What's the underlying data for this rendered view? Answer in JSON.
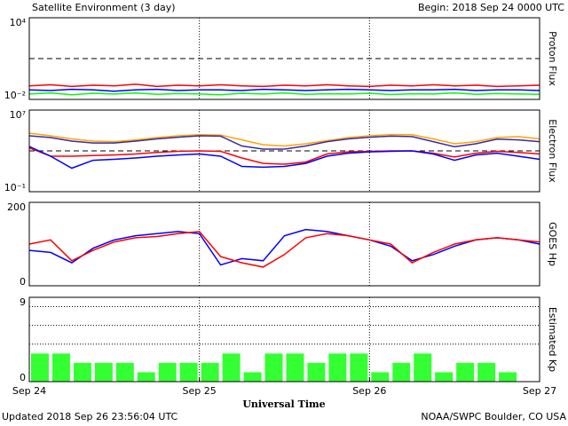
{
  "header": {
    "title": "Satellite Environment (3 day)",
    "begin": "Begin:  2018 Sep 24 0000 UTC"
  },
  "footer": {
    "updated": "Updated 2018 Sep 26 23:56:04 UTC",
    "source": "NOAA/SWPC Boulder, CO USA"
  },
  "chart_data": [
    {
      "type": "line",
      "ylabel": "Proton Flux",
      "yscale": "log",
      "ylim": [
        0.01,
        10000
      ],
      "yticks": [
        {
          "value": 10000,
          "label": "10⁴"
        },
        {
          "value": 0.01,
          "label": "10⁻²"
        }
      ],
      "xlim": [
        0,
        72
      ],
      "vlines": [
        24,
        48
      ],
      "hlines": [
        10
      ],
      "hline_style": "dashed",
      "x": [
        0,
        3,
        6,
        9,
        12,
        15,
        18,
        21,
        24,
        27,
        30,
        33,
        36,
        39,
        42,
        45,
        48,
        51,
        54,
        57,
        60,
        63,
        66,
        69,
        72
      ],
      "series": [
        {
          "color": "#ff0000",
          "values": [
            0.1,
            0.12,
            0.09,
            0.11,
            0.1,
            0.13,
            0.09,
            0.11,
            0.1,
            0.12,
            0.1,
            0.09,
            0.11,
            0.1,
            0.12,
            0.1,
            0.09,
            0.11,
            0.1,
            0.12,
            0.1,
            0.11,
            0.09,
            0.1,
            0.11
          ]
        },
        {
          "color": "#0000ff",
          "values": [
            0.05,
            0.045,
            0.055,
            0.05,
            0.04,
            0.05,
            0.055,
            0.045,
            0.05,
            0.05,
            0.045,
            0.055,
            0.05,
            0.045,
            0.05,
            0.055,
            0.05,
            0.045,
            0.05,
            0.05,
            0.055,
            0.045,
            0.05,
            0.05,
            0.045
          ]
        },
        {
          "color": "#00ff00",
          "values": [
            0.025,
            0.03,
            0.022,
            0.028,
            0.025,
            0.03,
            0.024,
            0.027,
            0.025,
            0.022,
            0.028,
            0.025,
            0.03,
            0.024,
            0.026,
            0.025,
            0.028,
            0.023,
            0.026,
            0.025,
            0.03,
            0.024,
            0.027,
            0.025,
            0.024
          ]
        }
      ]
    },
    {
      "type": "line",
      "ylabel": "Electron Flux",
      "yscale": "log",
      "ylim": [
        0.1,
        10000000
      ],
      "yticks": [
        {
          "value": 10000000,
          "label": "10⁷"
        },
        {
          "value": 0.1,
          "label": "10⁻¹"
        }
      ],
      "xlim": [
        0,
        72
      ],
      "vlines": [
        24,
        48
      ],
      "hlines": [
        1000
      ],
      "hline_style": "dashed",
      "x": [
        0,
        3,
        6,
        9,
        12,
        15,
        18,
        21,
        24,
        27,
        30,
        33,
        36,
        39,
        42,
        45,
        48,
        51,
        54,
        57,
        60,
        63,
        66,
        69,
        72
      ],
      "series": [
        {
          "color": "#ffa500",
          "values": [
            55000,
            30000,
            15000,
            9000,
            8000,
            12000,
            20000,
            30000,
            38000,
            35000,
            12000,
            4000,
            3000,
            5000,
            10000,
            20000,
            30000,
            40000,
            38000,
            15000,
            5000,
            8000,
            20000,
            25000,
            15000
          ]
        },
        {
          "color": "#3c28a0",
          "values": [
            30000,
            20000,
            9000,
            6000,
            6000,
            9000,
            15000,
            22000,
            30000,
            28000,
            3000,
            1500,
            1500,
            3000,
            8000,
            15000,
            22000,
            28000,
            25000,
            8000,
            2500,
            5000,
            14000,
            12000,
            8000
          ]
        },
        {
          "color": "#ff0000",
          "values": [
            2000,
            300,
            300,
            350,
            400,
            500,
            700,
            900,
            1000,
            900,
            200,
            60,
            50,
            80,
            500,
            800,
            900,
            1000,
            1000,
            600,
            250,
            600,
            900,
            700,
            500
          ]
        },
        {
          "color": "#0000ff",
          "values": [
            2700,
            300,
            20,
            120,
            150,
            200,
            300,
            400,
            500,
            300,
            30,
            25,
            30,
            60,
            300,
            600,
            800,
            900,
            1000,
            500,
            120,
            400,
            600,
            300,
            150
          ]
        }
      ]
    },
    {
      "type": "line",
      "ylabel": "GOES Hp",
      "ylim": [
        0,
        200
      ],
      "yticks": [
        200,
        0
      ],
      "xlim": [
        0,
        72
      ],
      "vlines": [
        24,
        48
      ],
      "x": [
        0,
        3,
        6,
        9,
        12,
        15,
        18,
        21,
        24,
        27,
        30,
        33,
        36,
        39,
        42,
        45,
        48,
        51,
        54,
        57,
        60,
        63,
        66,
        69,
        72
      ],
      "series": [
        {
          "color": "#0000ff",
          "values": [
            85,
            80,
            55,
            90,
            110,
            120,
            125,
            130,
            125,
            50,
            65,
            60,
            120,
            135,
            130,
            120,
            110,
            95,
            60,
            75,
            95,
            110,
            115,
            110,
            100
          ]
        },
        {
          "color": "#ff0000",
          "values": [
            100,
            110,
            60,
            85,
            105,
            115,
            118,
            125,
            130,
            70,
            55,
            45,
            75,
            115,
            125,
            120,
            110,
            100,
            55,
            80,
            100,
            110,
            115,
            110,
            105
          ]
        }
      ]
    },
    {
      "type": "bar",
      "ylabel": "Estimated Kp",
      "xlabel": "Universal Time",
      "ylim": [
        0,
        9
      ],
      "yticks": [
        9,
        0
      ],
      "xlim": [
        0,
        72
      ],
      "vlines": [
        24,
        48
      ],
      "hlines": [
        4,
        6,
        8
      ],
      "hline_style": "dotted",
      "xticks": [
        {
          "value": 0,
          "label": "Sep 24"
        },
        {
          "value": 24,
          "label": "Sep 25"
        },
        {
          "value": 48,
          "label": "Sep 26"
        },
        {
          "value": 72,
          "label": "Sep 27"
        }
      ],
      "bin_hours": 3,
      "color": "#33ff33",
      "x": [
        0,
        3,
        6,
        9,
        12,
        15,
        18,
        21,
        24,
        27,
        30,
        33,
        36,
        39,
        42,
        45,
        48,
        51,
        54,
        57,
        60,
        63,
        66
      ],
      "values": [
        3,
        3,
        2,
        2,
        2,
        1,
        2,
        2,
        2,
        3,
        1,
        3,
        3,
        2,
        3,
        3,
        1,
        2,
        3,
        1,
        2,
        2,
        1
      ]
    }
  ]
}
